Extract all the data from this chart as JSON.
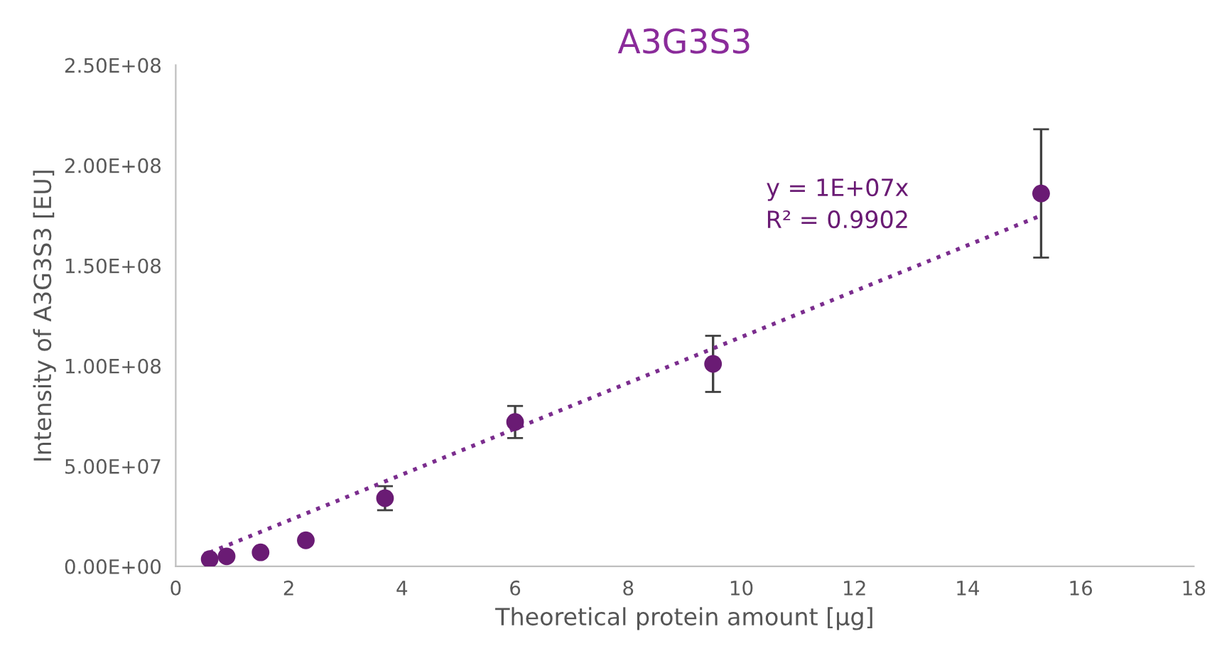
{
  "chart_data": {
    "type": "scatter",
    "title": "A3G3S3",
    "xlabel": "Theoretical protein amount [µg]",
    "ylabel": "Intensity of A3G3S3 [EU]",
    "series": [
      {
        "type": "scatter",
        "color": "#6a1b74",
        "x": [
          0.6,
          0.9,
          1.5,
          2.3,
          3.7,
          6,
          9.5,
          15.3
        ],
        "values": [
          3600000.0,
          5000000.0,
          7000000.0,
          13000000.0,
          34000000.0,
          72000000.0,
          101000000.0,
          186000000.0
        ],
        "errors": [
          null,
          null,
          null,
          null,
          6000000.0,
          8000000.0,
          14000000.0,
          32000000.0
        ]
      },
      {
        "type": "line",
        "color": "#7b2d8e",
        "line_style": "dotted",
        "marker": "none",
        "x": [
          0.6,
          15.3
        ],
        "values": [
          6900000.0,
          175000000.0
        ]
      }
    ],
    "annotations": [
      "y = 1E+07x\nR² = 0.9902"
    ],
    "xlim": [
      0,
      18
    ],
    "xticks": [
      0,
      2,
      4,
      6,
      8,
      10,
      12,
      14,
      16,
      18
    ],
    "ylim": [
      0,
      250000000.0
    ],
    "yticks": [
      {
        "value": 0,
        "label": "0.00E+00"
      },
      {
        "value": 50000000.0,
        "label": "5.00E+07"
      },
      {
        "value": 100000000.0,
        "label": "1.00E+08"
      },
      {
        "value": 150000000.0,
        "label": "1.50E+08"
      },
      {
        "value": 200000000.0,
        "label": "2.00E+08"
      },
      {
        "value": 250000000.0,
        "label": "2.50E+08"
      }
    ],
    "marker": "circle",
    "grid": false
  }
}
